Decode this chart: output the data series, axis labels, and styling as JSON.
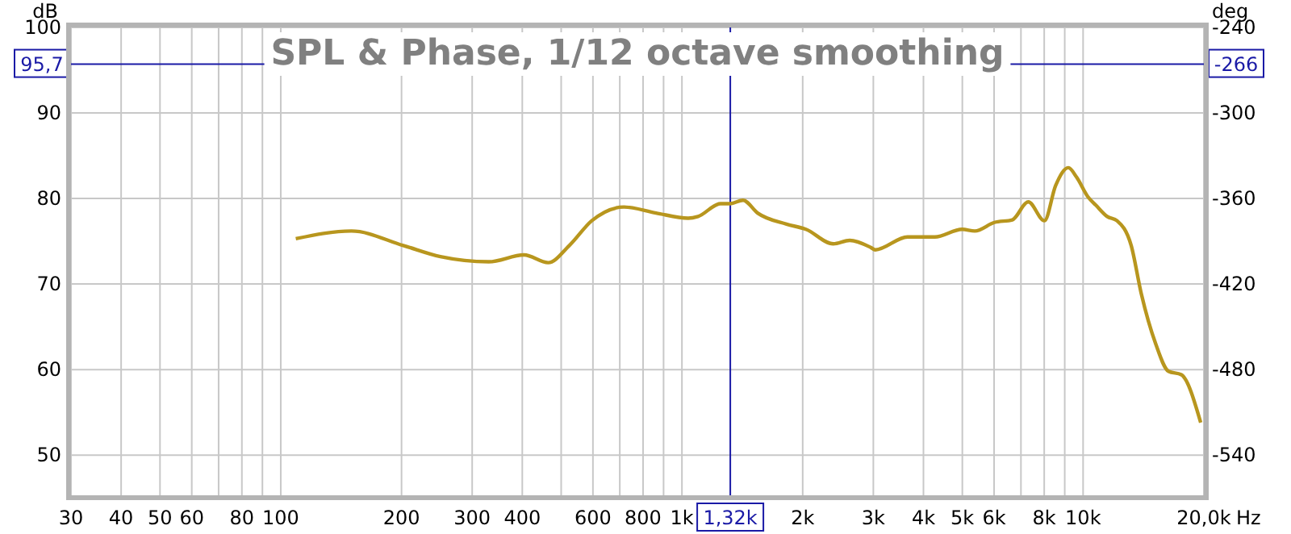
{
  "chart_data": {
    "type": "line",
    "title": "SPL & Phase, 1/12 octave smoothing",
    "xlabel": "Hz",
    "ylabel": "dB",
    "y2label": "deg",
    "log": "x",
    "grid": true,
    "xlim": [
      30,
      20000
    ],
    "ylim": [
      45.3,
      100
    ],
    "y2lim": [
      -568.2,
      -240
    ],
    "xticks": [
      30,
      40,
      50,
      60,
      {
        "value": 70,
        "label": null
      },
      80,
      {
        "value": 90,
        "label": null
      },
      100,
      200,
      300,
      400,
      {
        "value": 500,
        "label": null
      },
      600,
      {
        "value": 700,
        "label": null
      },
      800,
      {
        "value": 900,
        "label": null
      },
      {
        "value": 1000,
        "label": "1k"
      },
      {
        "value": 2000,
        "label": "2k"
      },
      {
        "value": 3000,
        "label": "3k"
      },
      {
        "value": 4000,
        "label": "4k"
      },
      {
        "value": 5000,
        "label": "5k"
      },
      {
        "value": 6000,
        "label": "6k"
      },
      {
        "value": 7000,
        "label": null
      },
      {
        "value": 8000,
        "label": "8k"
      },
      {
        "value": 9000,
        "label": null
      },
      {
        "value": 10000,
        "label": "10k"
      },
      {
        "value": 20000,
        "label": "20,0k"
      }
    ],
    "yticks": [
      50,
      60,
      70,
      80,
      90,
      100
    ],
    "y2ticks": [
      -240,
      -300,
      -360,
      -420,
      -480,
      -540
    ],
    "ref_lines": [
      {
        "axis": "y",
        "value": 95.7,
        "label": "95,7",
        "color": "#1a1aa6"
      },
      {
        "axis": "x",
        "value": 1320,
        "label": "1,32k",
        "color": "#1a1aa6"
      }
    ],
    "annotations": [
      {
        "text": "-266",
        "x": 20000,
        "y": 95.7
      }
    ],
    "series": [
      {
        "color": "#b8961e",
        "x": [
          109,
          150,
          202,
          250,
          330,
          404,
          464,
          524,
          596,
          717,
          862,
          1037,
          1097,
          1248,
          1320,
          1420,
          1544,
          1823,
          2037,
          2384,
          2619,
          2950,
          3034,
          3650,
          4270,
          4996,
          5370,
          6010,
          6660,
          7300,
          8010,
          8540,
          9190,
          9630,
          10280,
          10770,
          11480,
          12150,
          13180,
          13960,
          15170,
          16320,
          17570,
          19640
        ],
        "values": [
          75.3,
          76.2,
          74.5,
          73.2,
          72.6,
          73.4,
          72.5,
          74.5,
          77.4,
          79.0,
          78.3,
          77.7,
          77.9,
          79.4,
          79.4,
          79.8,
          78.3,
          77.0,
          76.4,
          74.7,
          75.1,
          74.3,
          74.0,
          75.5,
          75.5,
          76.4,
          76.2,
          77.2,
          77.5,
          79.6,
          77.4,
          81.5,
          83.6,
          82.5,
          80.2,
          79.2,
          77.9,
          77.4,
          74.5,
          68.9,
          63.0,
          59.8,
          59.4,
          53.8
        ]
      }
    ]
  }
}
